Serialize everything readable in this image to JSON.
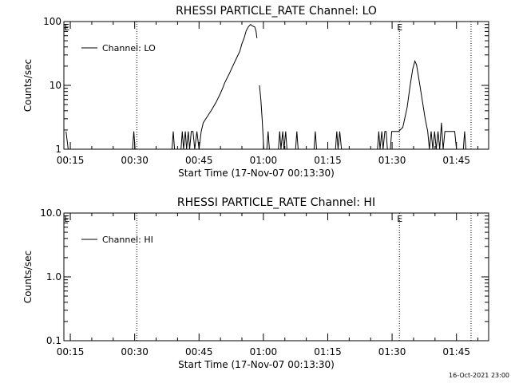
{
  "footer_stamp": "16-Oct-2021 23:00",
  "chart_data": [
    {
      "type": "line",
      "title": "RHESSI PARTICLE_RATE Channel: LO",
      "xlabel": "Start Time (17-Nov-07 00:13:30)",
      "ylabel": "Counts/sec",
      "yscale": "log",
      "ylim": [
        1,
        100
      ],
      "xlim_minutes": [
        13.5,
        112.5
      ],
      "x_ticks": [
        {
          "m": 15,
          "label": "00:15"
        },
        {
          "m": 30,
          "label": "00:30"
        },
        {
          "m": 45,
          "label": "00:45"
        },
        {
          "m": 60,
          "label": "01:00"
        },
        {
          "m": 75,
          "label": "01:15"
        },
        {
          "m": 90,
          "label": "01:30"
        },
        {
          "m": 105,
          "label": "01:45"
        }
      ],
      "y_ticks": [
        {
          "v": 1,
          "label": "1"
        },
        {
          "v": 10,
          "label": "10"
        },
        {
          "v": 100,
          "label": "100"
        }
      ],
      "legend": "Channel: LO",
      "legend_position": "top-left",
      "vlines_minutes": [
        30.5,
        91.7,
        108.4
      ],
      "event_markers": [
        {
          "m": 14.2,
          "label": "E"
        },
        {
          "m": 91.8,
          "label": "E"
        }
      ],
      "series": [
        {
          "name": "Channel: LO",
          "segments": [
            [
              [
                14.0,
                1.9
              ],
              [
                14.5,
                1
              ],
              [
                14.8,
                1
              ]
            ],
            [
              [
                29.5,
                1
              ],
              [
                29.8,
                1.9
              ],
              [
                30.1,
                1
              ]
            ],
            [
              [
                38.7,
                1
              ],
              [
                39.0,
                1.9
              ],
              [
                39.3,
                1
              ]
            ],
            [
              [
                40.8,
                1
              ],
              [
                41.1,
                1.9
              ],
              [
                41.4,
                1
              ],
              [
                41.8,
                1.9
              ],
              [
                42.1,
                1
              ],
              [
                42.5,
                1.9
              ],
              [
                42.8,
                1
              ],
              [
                43.2,
                1.9
              ],
              [
                43.6,
                1.9
              ],
              [
                44.0,
                1
              ],
              [
                44.5,
                1.9
              ],
              [
                45.0,
                1
              ],
              [
                45.5,
                1.9
              ],
              [
                46.0,
                2.6
              ],
              [
                47.0,
                3.3
              ],
              [
                48.0,
                4.2
              ],
              [
                49.0,
                5.5
              ],
              [
                50.0,
                7.5
              ],
              [
                50.5,
                9
              ],
              [
                51.0,
                11
              ],
              [
                52.0,
                15
              ],
              [
                53.0,
                21
              ],
              [
                54.0,
                29
              ],
              [
                54.5,
                34
              ],
              [
                55.0,
                45
              ],
              [
                55.5,
                55
              ],
              [
                56.0,
                72
              ],
              [
                56.5,
                83
              ],
              [
                57.0,
                90
              ],
              [
                57.5,
                85
              ],
              [
                58.0,
                82
              ],
              [
                58.3,
                70
              ],
              [
                58.5,
                55
              ]
            ],
            [
              [
                59.1,
                10
              ],
              [
                59.4,
                6
              ],
              [
                59.7,
                3
              ],
              [
                60.1,
                1
              ]
            ],
            [
              [
                60.8,
                1
              ],
              [
                61.1,
                1.9
              ],
              [
                61.4,
                1
              ]
            ],
            [
              [
                63.5,
                1
              ],
              [
                63.8,
                1.9
              ],
              [
                64.1,
                1
              ],
              [
                64.5,
                1.9
              ],
              [
                64.8,
                1
              ],
              [
                65.2,
                1.9
              ],
              [
                65.5,
                1
              ]
            ],
            [
              [
                67.5,
                1
              ],
              [
                67.8,
                1.9
              ],
              [
                68.1,
                1
              ]
            ],
            [
              [
                71.8,
                1
              ],
              [
                72.1,
                1.9
              ],
              [
                72.4,
                1
              ]
            ],
            [
              [
                76.8,
                1
              ],
              [
                77.1,
                1.9
              ],
              [
                77.4,
                1
              ],
              [
                77.8,
                1.9
              ],
              [
                78.2,
                1
              ]
            ],
            [
              [
                86.6,
                1
              ],
              [
                86.9,
                1.9
              ],
              [
                87.2,
                1
              ],
              [
                87.6,
                1.9
              ],
              [
                87.9,
                1
              ],
              [
                88.3,
                1.9
              ],
              [
                88.6,
                1.9
              ],
              [
                88.9,
                1
              ]
            ],
            [
              [
                89.6,
                1
              ],
              [
                89.9,
                1.9
              ],
              [
                91.5,
                1.9
              ],
              [
                92.5,
                2.2
              ],
              [
                93.5,
                4.5
              ],
              [
                94.2,
                10
              ],
              [
                94.8,
                18
              ],
              [
                95.3,
                24
              ],
              [
                95.7,
                21
              ],
              [
                96.3,
                12
              ],
              [
                97.0,
                6
              ],
              [
                97.7,
                3
              ],
              [
                98.3,
                1.9
              ],
              [
                98.7,
                1
              ],
              [
                99.1,
                1.9
              ],
              [
                99.5,
                1
              ],
              [
                99.9,
                1.9
              ],
              [
                100.3,
                1
              ],
              [
                100.7,
                1.9
              ],
              [
                101.1,
                1
              ],
              [
                101.5,
                2.6
              ],
              [
                101.9,
                1
              ],
              [
                102.3,
                1.9
              ],
              [
                104.6,
                1.9
              ],
              [
                105.0,
                1
              ]
            ],
            [
              [
                106.6,
                1
              ],
              [
                106.9,
                1.9
              ],
              [
                107.2,
                1
              ]
            ]
          ]
        }
      ]
    },
    {
      "type": "line",
      "title": "RHESSI PARTICLE_RATE Channel: HI",
      "xlabel": "Start Time (17-Nov-07 00:13:30)",
      "ylabel": "Counts/sec",
      "yscale": "log",
      "ylim": [
        0.1,
        10
      ],
      "xlim_minutes": [
        13.5,
        112.5
      ],
      "x_ticks": [
        {
          "m": 15,
          "label": "00:15"
        },
        {
          "m": 30,
          "label": "00:30"
        },
        {
          "m": 45,
          "label": "00:45"
        },
        {
          "m": 60,
          "label": "01:00"
        },
        {
          "m": 75,
          "label": "01:15"
        },
        {
          "m": 90,
          "label": "01:30"
        },
        {
          "m": 105,
          "label": "01:45"
        }
      ],
      "y_ticks": [
        {
          "v": 0.1,
          "label": "0.1"
        },
        {
          "v": 1,
          "label": "1.0"
        },
        {
          "v": 10,
          "label": "10.0"
        }
      ],
      "legend": "Channel: HI",
      "legend_position": "top-left",
      "vlines_minutes": [
        30.5,
        91.7,
        108.4
      ],
      "event_markers": [
        {
          "m": 14.2,
          "label": "E"
        },
        {
          "m": 91.8,
          "label": "E"
        }
      ],
      "series": [
        {
          "name": "Channel: HI",
          "segments": []
        }
      ]
    }
  ]
}
